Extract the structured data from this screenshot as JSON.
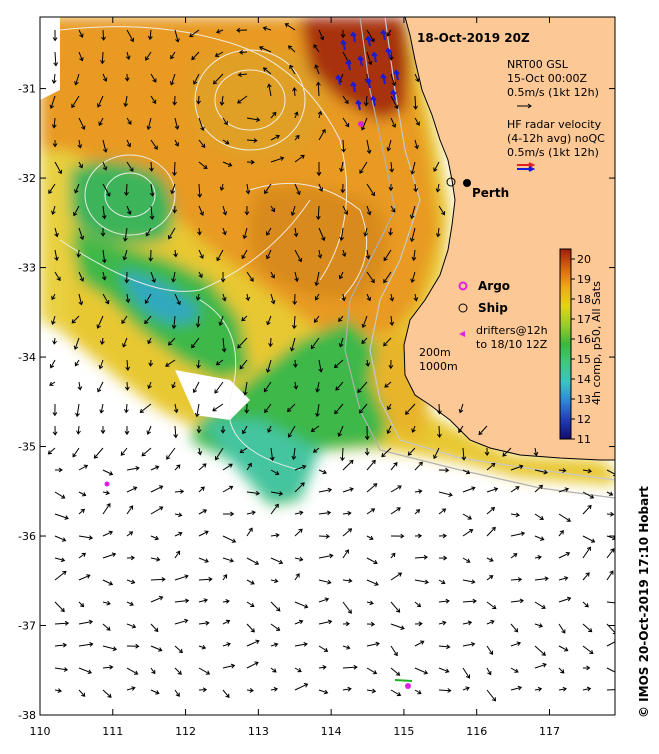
{
  "map": {
    "title": "18-Oct-2019 20Z",
    "city": "Perth",
    "credit": "© IMOS 20-Oct-2019 17:10 Hobart",
    "lon_ticks": [
      "110",
      "111",
      "112",
      "113",
      "114",
      "115",
      "116",
      "117"
    ],
    "lat_ticks": [
      "-31",
      "-32",
      "-33",
      "-34",
      "-35",
      "-36",
      "-37",
      "-38"
    ],
    "lon_range": [
      110,
      117.9
    ],
    "lat_range": [
      -38,
      -30.2
    ],
    "land_color": "#fcc896",
    "ocean_color": "#ffffff"
  },
  "legend": {
    "model_line1": "NRT00 GSL",
    "model_line2": "15-Oct 00:00Z",
    "model_line3": "0.5m/s (1kt 12h)",
    "radar_line1": "HF radar velocity",
    "radar_line2": "(4-12h avg) noQC",
    "radar_line3": "0.5m/s (1kt 12h)",
    "argo": "Argo",
    "ship": "Ship",
    "drifters_line1": "drifters@12h",
    "drifters_line2": "to 18/10 12Z",
    "contour_200": "200m",
    "contour_1000": "1000m"
  },
  "colorbar": {
    "label": "4h comp, p50, All Sats",
    "ticks": [
      "11",
      "12",
      "13",
      "14",
      "15",
      "16",
      "17",
      "18",
      "19",
      "20"
    ],
    "min": 11,
    "max": 20.5,
    "colors": [
      "#140a6e",
      "#1f3cb4",
      "#2f86d6",
      "#3cc4c4",
      "#40c880",
      "#3cb83c",
      "#9ccc2a",
      "#e4d416",
      "#f0a818",
      "#d86410",
      "#9c1e08"
    ]
  },
  "chart_data": {
    "type": "map",
    "city": {
      "name": "Perth",
      "lon": 115.86,
      "lat": -31.95
    },
    "argo_floats": [
      {
        "lon": 114.5,
        "lat": -31.45
      },
      {
        "lon": 110.9,
        "lat": -35.35
      },
      {
        "lon": 115.1,
        "lat": -37.65
      }
    ]
  }
}
